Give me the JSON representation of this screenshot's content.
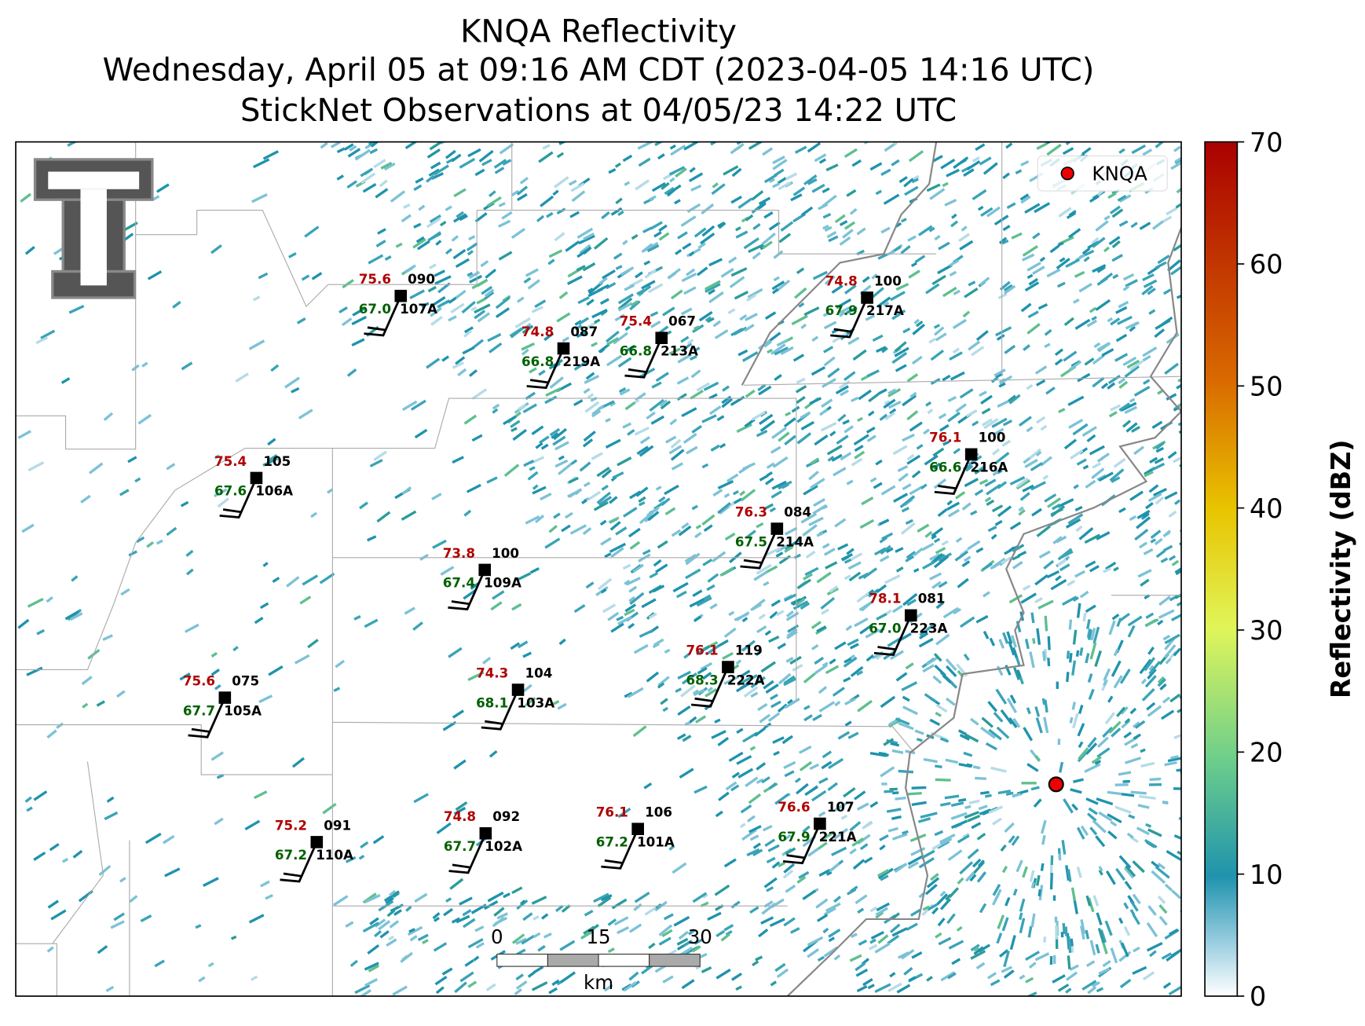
{
  "header": {
    "title": "KNQA Reflectivity",
    "subtitle": "Wednesday, April 05 at 09:16 AM CDT (2023-04-05 14:16 UTC)",
    "observations": "StickNet Observations at 04/05/23 14:22 UTC"
  },
  "legend": {
    "label": "KNQA"
  },
  "colorbar": {
    "label": "Reflectivity (dBZ)",
    "lim": [
      0,
      70
    ],
    "ticks": [
      0,
      10,
      20,
      30,
      40,
      50,
      60,
      70
    ]
  },
  "scalebar": {
    "ticks": [
      "0",
      "15",
      "30"
    ],
    "unit": "km"
  },
  "stations": [
    {
      "id": "107A",
      "temp": "75.6",
      "dewpoint": "67.0",
      "pressure": "090"
    },
    {
      "id": "219A",
      "temp": "74.8",
      "dewpoint": "66.8",
      "pressure": "087"
    },
    {
      "id": "213A",
      "temp": "75.4",
      "dewpoint": "66.8",
      "pressure": "067"
    },
    {
      "id": "217A",
      "temp": "74.8",
      "dewpoint": "67.9",
      "pressure": "100"
    },
    {
      "id": "106A",
      "temp": "75.4",
      "dewpoint": "67.6",
      "pressure": "105"
    },
    {
      "id": "216A",
      "temp": "76.1",
      "dewpoint": "66.6",
      "pressure": "100"
    },
    {
      "id": "214A",
      "temp": "76.3",
      "dewpoint": "67.5",
      "pressure": "084"
    },
    {
      "id": "109A",
      "temp": "73.8",
      "dewpoint": "67.4",
      "pressure": "100"
    },
    {
      "id": "223A",
      "temp": "78.1",
      "dewpoint": "67.0",
      "pressure": "081"
    },
    {
      "id": "222A",
      "temp": "76.1",
      "dewpoint": "68.3",
      "pressure": "119"
    },
    {
      "id": "105A",
      "temp": "75.6",
      "dewpoint": "67.7",
      "pressure": "075"
    },
    {
      "id": "103A",
      "temp": "74.3",
      "dewpoint": "68.1",
      "pressure": "104"
    },
    {
      "id": "110A",
      "temp": "75.2",
      "dewpoint": "67.2",
      "pressure": "091"
    },
    {
      "id": "102A",
      "temp": "74.8",
      "dewpoint": "67.7",
      "pressure": "092"
    },
    {
      "id": "101A",
      "temp": "76.1",
      "dewpoint": "67.2",
      "pressure": "106"
    },
    {
      "id": "221A",
      "temp": "76.6",
      "dewpoint": "67.9",
      "pressure": "107"
    }
  ]
}
